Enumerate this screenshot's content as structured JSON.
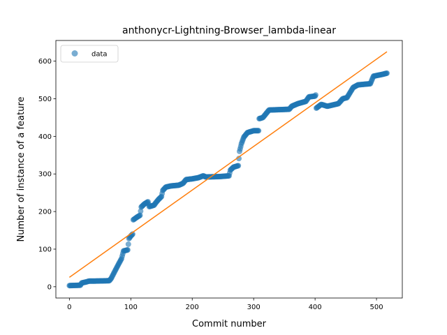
{
  "chart_data": {
    "type": "scatter",
    "title": "anthonycr-Lightning-Browser_lambda-linear",
    "xlabel": "Commit number",
    "ylabel": "Number of instance of a feature",
    "xlim": [
      -22,
      542
    ],
    "ylim": [
      -30,
      655
    ],
    "xticks": [
      0,
      100,
      200,
      300,
      400,
      500
    ],
    "yticks": [
      0,
      100,
      200,
      300,
      400,
      500,
      600
    ],
    "grid": false,
    "legend": {
      "position": "top-left",
      "entries": [
        "data"
      ]
    },
    "colors": {
      "data": "#1f77b4",
      "fit": "#ff7f0e"
    },
    "series": [
      {
        "name": "data",
        "kind": "scatter",
        "segments": [
          [
            0,
            3
          ],
          [
            18,
            4
          ],
          [
            20,
            10
          ],
          [
            28,
            13
          ],
          [
            32,
            15
          ],
          [
            40,
            15
          ],
          [
            65,
            16
          ],
          [
            68,
            22
          ],
          [
            73,
            38
          ],
          [
            80,
            60
          ],
          [
            85,
            75
          ],
          [
            88,
            95
          ],
          [
            95,
            98
          ],
          [
            97,
            128
          ],
          [
            100,
            135
          ],
          [
            103,
            140
          ],
          [
            104,
            178
          ],
          [
            110,
            185
          ],
          [
            115,
            190
          ],
          [
            117,
            212
          ],
          [
            122,
            220
          ],
          [
            128,
            226
          ],
          [
            130,
            213
          ],
          [
            138,
            217
          ],
          [
            140,
            222
          ],
          [
            145,
            232
          ],
          [
            150,
            240
          ],
          [
            152,
            256
          ],
          [
            157,
            265
          ],
          [
            165,
            268
          ],
          [
            178,
            270
          ],
          [
            185,
            275
          ],
          [
            190,
            285
          ],
          [
            200,
            287
          ],
          [
            210,
            290
          ],
          [
            218,
            295
          ],
          [
            222,
            292
          ],
          [
            245,
            293
          ],
          [
            260,
            295
          ],
          [
            262,
            310
          ],
          [
            267,
            318
          ],
          [
            275,
            322
          ],
          [
            277,
            360
          ],
          [
            280,
            380
          ],
          [
            284,
            398
          ],
          [
            290,
            410
          ],
          [
            300,
            415
          ],
          [
            308,
            415
          ],
          [
            309,
            447
          ],
          [
            315,
            450
          ],
          [
            320,
            460
          ],
          [
            325,
            470
          ],
          [
            358,
            472
          ],
          [
            362,
            480
          ],
          [
            372,
            487
          ],
          [
            385,
            493
          ],
          [
            390,
            505
          ],
          [
            400,
            507
          ],
          [
            401,
            510
          ],
          [
            402,
            475
          ],
          [
            410,
            485
          ],
          [
            420,
            480
          ],
          [
            438,
            487
          ],
          [
            445,
            500
          ],
          [
            452,
            503
          ],
          [
            462,
            530
          ],
          [
            470,
            537
          ],
          [
            490,
            540
          ],
          [
            495,
            560
          ],
          [
            510,
            565
          ],
          [
            517,
            568
          ]
        ]
      },
      {
        "name": "",
        "kind": "line",
        "x": [
          0,
          517
        ],
        "y": [
          25,
          625
        ]
      }
    ]
  }
}
